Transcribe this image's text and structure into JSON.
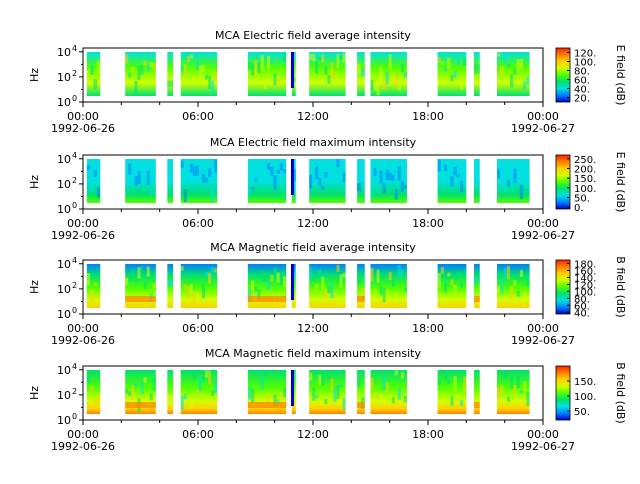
{
  "chart_data": [
    {
      "type": "heatmap",
      "title": "MCA  Electric field average intensity",
      "ylabel": "Hz",
      "y_scale": "log",
      "y_ticks": [
        {
          "base": "10",
          "exp": "0"
        },
        {
          "base": "10",
          "exp": "2"
        },
        {
          "base": "10",
          "exp": "4"
        }
      ],
      "x_tick_labels": [
        "00:00",
        "06:00",
        "12:00",
        "18:00",
        "00:00"
      ],
      "x_tick_hours": [
        0,
        6,
        12,
        18,
        24
      ],
      "date_start": "1992-06-26",
      "date_end": "1992-06-27",
      "colorbar_label": "E field (dB)",
      "colorbar_ticks": [
        "20.",
        "40.",
        "60.",
        "80.",
        "100.",
        "120."
      ],
      "colorbar_range": [
        10,
        130
      ],
      "colorbar_tick_values": [
        20,
        40,
        60,
        80,
        100,
        120
      ],
      "segments_hours": [
        [
          0.2,
          0.9
        ],
        [
          2.2,
          3.8
        ],
        [
          4.4,
          4.7
        ],
        [
          5.1,
          7.0
        ],
        [
          8.6,
          10.6
        ],
        [
          10.9,
          11.1
        ],
        [
          11.8,
          13.7
        ],
        [
          14.3,
          14.7
        ],
        [
          15.0,
          16.9
        ],
        [
          18.5,
          20.0
        ],
        [
          20.4,
          20.7
        ],
        [
          21.6,
          23.3
        ]
      ],
      "intensity_level": "mid",
      "colormap": [
        "#0000c8",
        "#0080ff",
        "#00e0e0",
        "#00e070",
        "#50ff00",
        "#d0ff00",
        "#ffd000",
        "#ff8000",
        "#ff2000"
      ]
    },
    {
      "type": "heatmap",
      "title": "MCA  Electric field maximum intensity",
      "ylabel": "Hz",
      "y_scale": "log",
      "y_ticks": [
        {
          "base": "10",
          "exp": "0"
        },
        {
          "base": "10",
          "exp": "2"
        },
        {
          "base": "10",
          "exp": "4"
        }
      ],
      "x_tick_labels": [
        "00:00",
        "06:00",
        "12:00",
        "18:00",
        "00:00"
      ],
      "x_tick_hours": [
        0,
        6,
        12,
        18,
        24
      ],
      "date_start": "1992-06-26",
      "date_end": "1992-06-27",
      "colorbar_label": "E field (dB)",
      "colorbar_ticks": [
        "0.",
        "50.",
        "100.",
        "150.",
        "200.",
        "250."
      ],
      "colorbar_range": [
        -10,
        270
      ],
      "colorbar_tick_values": [
        0,
        50,
        100,
        150,
        200,
        250
      ],
      "segments_hours": [
        [
          0.2,
          0.9
        ],
        [
          2.2,
          3.8
        ],
        [
          4.4,
          4.7
        ],
        [
          5.1,
          7.0
        ],
        [
          8.6,
          10.6
        ],
        [
          10.9,
          11.1
        ],
        [
          11.8,
          13.7
        ],
        [
          14.3,
          14.7
        ],
        [
          15.0,
          16.9
        ],
        [
          18.5,
          20.0
        ],
        [
          20.4,
          20.7
        ],
        [
          21.6,
          23.3
        ]
      ],
      "intensity_level": "cool",
      "colormap": [
        "#0000c8",
        "#0080ff",
        "#00e0e0",
        "#00e070",
        "#50ff00",
        "#d0ff00",
        "#ffd000",
        "#ff8000",
        "#ff2000"
      ]
    },
    {
      "type": "heatmap",
      "title": "MCA  Magnetic field average intensity",
      "ylabel": "Hz",
      "y_scale": "log",
      "y_ticks": [
        {
          "base": "10",
          "exp": "0"
        },
        {
          "base": "10",
          "exp": "2"
        },
        {
          "base": "10",
          "exp": "4"
        }
      ],
      "x_tick_labels": [
        "00:00",
        "06:00",
        "12:00",
        "18:00",
        "00:00"
      ],
      "x_tick_hours": [
        0,
        6,
        12,
        18,
        24
      ],
      "date_start": "1992-06-26",
      "date_end": "1992-06-27",
      "colorbar_label": "B field (dB)",
      "colorbar_ticks": [
        "40.",
        "60.",
        "80.",
        "100.",
        "120.",
        "140.",
        "160.",
        "180."
      ],
      "colorbar_range": [
        35,
        190
      ],
      "colorbar_tick_values": [
        40,
        60,
        80,
        100,
        120,
        140,
        160,
        180
      ],
      "segments_hours": [
        [
          0.2,
          0.9
        ],
        [
          2.2,
          3.8
        ],
        [
          4.4,
          4.7
        ],
        [
          5.1,
          7.0
        ],
        [
          8.6,
          10.6
        ],
        [
          10.9,
          11.1
        ],
        [
          11.8,
          13.7
        ],
        [
          14.3,
          14.7
        ],
        [
          15.0,
          16.9
        ],
        [
          18.5,
          20.0
        ],
        [
          20.4,
          20.7
        ],
        [
          21.6,
          23.3
        ]
      ],
      "intensity_level": "banded",
      "colormap": [
        "#0000c8",
        "#0080ff",
        "#00e0e0",
        "#00e070",
        "#50ff00",
        "#d0ff00",
        "#ffd000",
        "#ff8000",
        "#ff2000"
      ]
    },
    {
      "type": "heatmap",
      "title": "MCA  Magnetic field maximum intensity",
      "ylabel": "Hz",
      "y_scale": "log",
      "y_ticks": [
        {
          "base": "10",
          "exp": "0"
        },
        {
          "base": "10",
          "exp": "2"
        },
        {
          "base": "10",
          "exp": "4"
        }
      ],
      "x_tick_labels": [
        "00:00",
        "06:00",
        "12:00",
        "18:00",
        "00:00"
      ],
      "x_tick_hours": [
        0,
        6,
        12,
        18,
        24
      ],
      "date_start": "1992-06-26",
      "date_end": "1992-06-27",
      "colorbar_label": "B field (dB)",
      "colorbar_ticks": [
        "50.",
        "100.",
        "150."
      ],
      "colorbar_range": [
        20,
        200
      ],
      "colorbar_tick_values": [
        50,
        100,
        150
      ],
      "segments_hours": [
        [
          0.2,
          0.9
        ],
        [
          2.2,
          3.8
        ],
        [
          4.4,
          4.7
        ],
        [
          5.1,
          7.0
        ],
        [
          8.6,
          10.6
        ],
        [
          10.9,
          11.1
        ],
        [
          11.8,
          13.7
        ],
        [
          14.3,
          14.7
        ],
        [
          15.0,
          16.9
        ],
        [
          18.5,
          20.0
        ],
        [
          20.4,
          20.7
        ],
        [
          21.6,
          23.3
        ]
      ],
      "intensity_level": "banded-hot",
      "colormap": [
        "#0000c8",
        "#0080ff",
        "#00e0e0",
        "#00e070",
        "#50ff00",
        "#d0ff00",
        "#ffd000",
        "#ff8000",
        "#ff2000"
      ]
    }
  ]
}
